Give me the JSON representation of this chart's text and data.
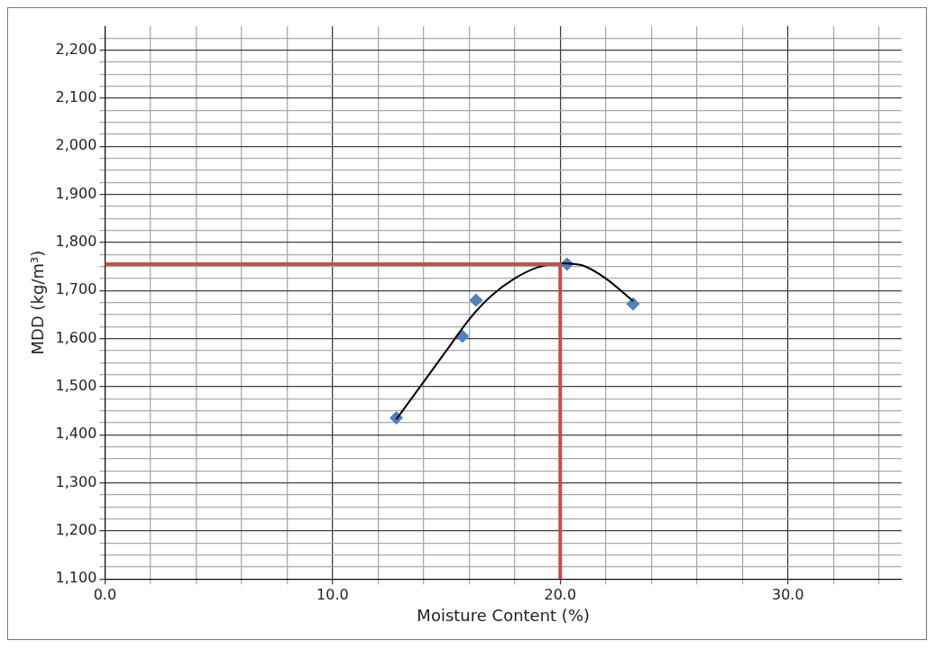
{
  "chart_data": {
    "type": "scatter",
    "xlabel": "Moisture Content (%)",
    "ylabel": "MDD (kg/m³)",
    "xlim": [
      0,
      35
    ],
    "ylim": [
      1100,
      2250
    ],
    "xticks": [
      {
        "value": 0,
        "label": "0.0"
      },
      {
        "value": 2,
        "label": null
      },
      {
        "value": 4,
        "label": null
      },
      {
        "value": 6,
        "label": null
      },
      {
        "value": 8,
        "label": null
      },
      {
        "value": 10,
        "label": "10.0"
      },
      {
        "value": 12,
        "label": null
      },
      {
        "value": 14,
        "label": null
      },
      {
        "value": 16,
        "label": null
      },
      {
        "value": 18,
        "label": null
      },
      {
        "value": 20,
        "label": "20.0"
      },
      {
        "value": 22,
        "label": null
      },
      {
        "value": 24,
        "label": null
      },
      {
        "value": 26,
        "label": null
      },
      {
        "value": 28,
        "label": null
      },
      {
        "value": 30,
        "label": "30.0"
      },
      {
        "value": 32,
        "label": null
      },
      {
        "value": 34,
        "label": null
      }
    ],
    "yticks": [
      {
        "value": 1100,
        "label": "1,100"
      },
      {
        "value": 1125,
        "label": null
      },
      {
        "value": 1150,
        "label": null
      },
      {
        "value": 1175,
        "label": null
      },
      {
        "value": 1200,
        "label": "1,200"
      },
      {
        "value": 1225,
        "label": null
      },
      {
        "value": 1250,
        "label": null
      },
      {
        "value": 1275,
        "label": null
      },
      {
        "value": 1300,
        "label": "1,300"
      },
      {
        "value": 1325,
        "label": null
      },
      {
        "value": 1350,
        "label": null
      },
      {
        "value": 1375,
        "label": null
      },
      {
        "value": 1400,
        "label": "1,400"
      },
      {
        "value": 1425,
        "label": null
      },
      {
        "value": 1450,
        "label": null
      },
      {
        "value": 1475,
        "label": null
      },
      {
        "value": 1500,
        "label": "1,500"
      },
      {
        "value": 1525,
        "label": null
      },
      {
        "value": 1550,
        "label": null
      },
      {
        "value": 1575,
        "label": null
      },
      {
        "value": 1600,
        "label": "1,600"
      },
      {
        "value": 1625,
        "label": null
      },
      {
        "value": 1650,
        "label": null
      },
      {
        "value": 1675,
        "label": null
      },
      {
        "value": 1700,
        "label": "1,700"
      },
      {
        "value": 1725,
        "label": null
      },
      {
        "value": 1750,
        "label": null
      },
      {
        "value": 1775,
        "label": null
      },
      {
        "value": 1800,
        "label": "1,800"
      },
      {
        "value": 1825,
        "label": null
      },
      {
        "value": 1850,
        "label": null
      },
      {
        "value": 1875,
        "label": null
      },
      {
        "value": 1900,
        "label": "1,900"
      },
      {
        "value": 1925,
        "label": null
      },
      {
        "value": 1950,
        "label": null
      },
      {
        "value": 1975,
        "label": null
      },
      {
        "value": 2000,
        "label": "2,000"
      },
      {
        "value": 2025,
        "label": null
      },
      {
        "value": 2050,
        "label": null
      },
      {
        "value": 2075,
        "label": null
      },
      {
        "value": 2100,
        "label": "2,100"
      },
      {
        "value": 2125,
        "label": null
      },
      {
        "value": 2150,
        "label": null
      },
      {
        "value": 2175,
        "label": null
      },
      {
        "value": 2200,
        "label": "2,200"
      },
      {
        "value": 2225,
        "label": null
      }
    ],
    "grid": true,
    "legend": false,
    "series": [
      {
        "type": "line",
        "color": "#c0504d",
        "x": [
          0,
          20,
          20
        ],
        "values": [
          1755,
          1755,
          1100
        ],
        "marker": "none",
        "line_style": "solid"
      },
      {
        "type": "line",
        "color": "#000000",
        "x": [
          12.8,
          14,
          15,
          16,
          17,
          18,
          19,
          20,
          21,
          22,
          23.2
        ],
        "values": [
          1432,
          1510,
          1575,
          1640,
          1690,
          1725,
          1748,
          1757,
          1752,
          1725,
          1678
        ],
        "marker": "none",
        "line_style": "solid"
      },
      {
        "type": "scatter",
        "color": "#4f81bd",
        "x": [
          12.8,
          15.7,
          16.3,
          20.3,
          23.2
        ],
        "values": [
          1435,
          1605,
          1680,
          1755,
          1672
        ],
        "marker": "diamond"
      }
    ]
  }
}
